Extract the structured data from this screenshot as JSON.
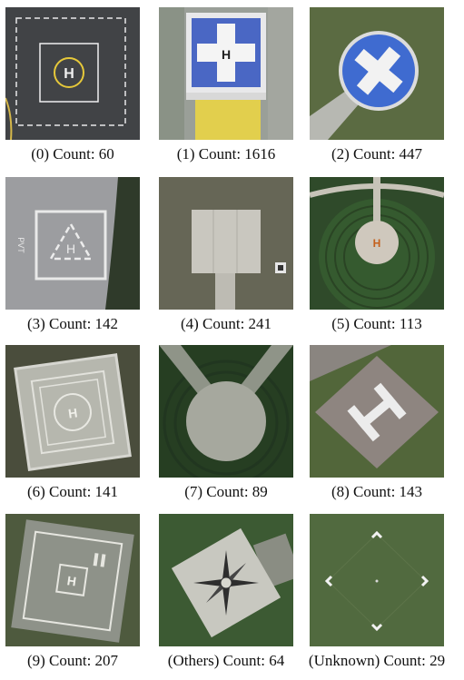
{
  "figure": {
    "panels": [
      {
        "caption": "(0) Count: 60"
      },
      {
        "caption": "(1) Count: 1616"
      },
      {
        "caption": "(2) Count: 447"
      },
      {
        "caption": "(3) Count: 142"
      },
      {
        "caption": "(4) Count: 241"
      },
      {
        "caption": "(5) Count: 113"
      },
      {
        "caption": "(6) Count: 141"
      },
      {
        "caption": "(7) Count: 89"
      },
      {
        "caption": "(8) Count: 143"
      },
      {
        "caption": "(9) Count: 207"
      },
      {
        "caption": "(Others) Count: 64"
      },
      {
        "caption": "(Unknown) Count: 29"
      }
    ],
    "pad_markings": {
      "panel0": "H",
      "panel1": "H",
      "panel3_side_text": "PVT",
      "panel3_center": "H",
      "panel6": "H",
      "panel9": "H"
    }
  }
}
